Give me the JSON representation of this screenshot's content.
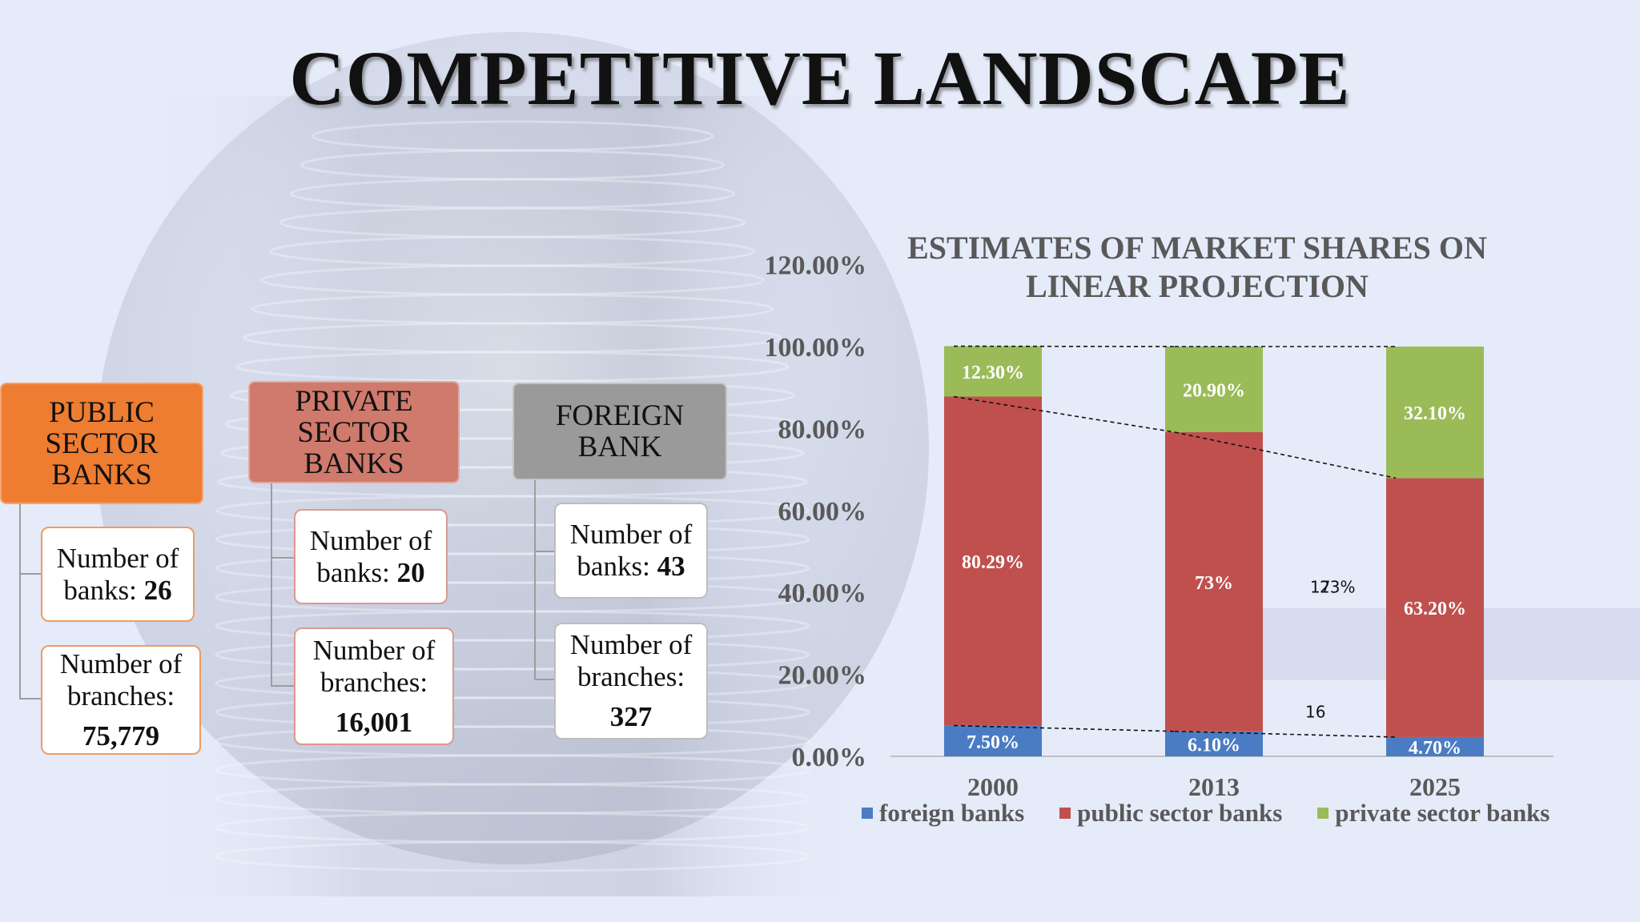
{
  "title": "COMPETITIVE LANDSCAPE",
  "groups": [
    {
      "heading": "PUBLIC SECTOR BANKS",
      "heading_lines": [
        "PUBLIC",
        "SECTOR",
        "BANKS"
      ],
      "banks_label": "Number of banks:",
      "banks_value": "26",
      "branches_label": "Number of branches:",
      "branches_value": "75,779",
      "color": "#ee7d32"
    },
    {
      "heading": "PRIVATE SECTOR BANKS",
      "heading_lines": [
        "PRIVATE",
        "SECTOR",
        "BANKS"
      ],
      "banks_label": "Number of banks:",
      "banks_value": "20",
      "branches_label": "Number of branches:",
      "branches_value": "16,001",
      "color": "#cf7a6d"
    },
    {
      "heading": "FOREIGN BANK",
      "heading_lines": [
        "FOREIGN",
        "BANK"
      ],
      "banks_label": "Number of banks:",
      "banks_value": "43",
      "branches_label": "Number of branches:",
      "branches_value": "327",
      "color": "#9a9a9a"
    }
  ],
  "chart_data": {
    "type": "bar",
    "stacked": true,
    "title": "ESTIMATES OF MARKET SHARES ON LINEAR PROJECTION",
    "title_lines": [
      "ESTIMATES OF MARKET SHARES ON",
      "LINEAR PROJECTION"
    ],
    "categories": [
      "2000",
      "2013",
      "2025"
    ],
    "series": [
      {
        "name": "foreign banks",
        "color": "#4a7cc4",
        "values": [
          7.5,
          6.1,
          4.7
        ],
        "labels": [
          "7.50%",
          "6.10%",
          "4.70%"
        ]
      },
      {
        "name": "public sector banks",
        "color": "#c0504d",
        "values": [
          80.29,
          73,
          63.2
        ],
        "labels": [
          "80.29%",
          "73%",
          "63.20%"
        ]
      },
      {
        "name": "private sector banks",
        "color": "#9bbb59",
        "values": [
          12.3,
          20.9,
          32.1
        ],
        "labels": [
          "12.30%",
          "20.90%",
          "32.10%"
        ]
      }
    ],
    "ylim": [
      0,
      120
    ],
    "yticks": [
      0,
      20,
      40,
      60,
      80,
      100,
      120
    ],
    "ytick_labels": [
      "0.00%",
      "20.00%",
      "40.00%",
      "60.00%",
      "80.00%",
      "100.00%",
      "120.00%"
    ],
    "annotations": [
      {
        "text": "17",
        "x_between": [
          "2013",
          "2025"
        ],
        "y": 41.5
      },
      {
        "text": "23%",
        "x_between": [
          "2013",
          "2025"
        ],
        "y": 41.5
      },
      {
        "text": "16",
        "x_between": [
          "2013",
          "2025"
        ],
        "y": 11
      }
    ],
    "trend_lines": true,
    "legend_position": "bottom"
  }
}
